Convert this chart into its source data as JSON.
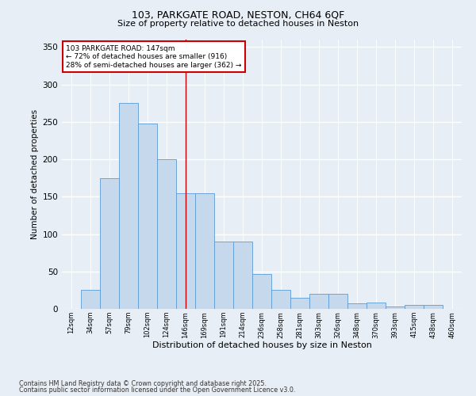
{
  "title1": "103, PARKGATE ROAD, NESTON, CH64 6QF",
  "title2": "Size of property relative to detached houses in Neston",
  "xlabel": "Distribution of detached houses by size in Neston",
  "ylabel": "Number of detached properties",
  "bin_labels": [
    "12sqm",
    "34sqm",
    "57sqm",
    "79sqm",
    "102sqm",
    "124sqm",
    "146sqm",
    "169sqm",
    "191sqm",
    "214sqm",
    "236sqm",
    "258sqm",
    "281sqm",
    "303sqm",
    "326sqm",
    "348sqm",
    "370sqm",
    "393sqm",
    "415sqm",
    "438sqm",
    "460sqm"
  ],
  "bar_heights": [
    0,
    25,
    175,
    275,
    248,
    200,
    155,
    155,
    90,
    90,
    47,
    25,
    15,
    20,
    20,
    7,
    8,
    3,
    5,
    5,
    0
  ],
  "bar_color": "#c5d8ec",
  "bar_edge_color": "#5b9bd5",
  "vline_index": 6,
  "annotation_box_text": "103 PARKGATE ROAD: 147sqm\n← 72% of detached houses are smaller (916)\n28% of semi-detached houses are larger (362) →",
  "annotation_box_color": "#ffffff",
  "annotation_box_edge_color": "#cc0000",
  "vline_color": "#cc0000",
  "ylim": [
    0,
    360
  ],
  "yticks": [
    0,
    50,
    100,
    150,
    200,
    250,
    300,
    350
  ],
  "bg_color": "#e8eef5",
  "grid_color": "#ffffff",
  "footer1": "Contains HM Land Registry data © Crown copyright and database right 2025.",
  "footer2": "Contains public sector information licensed under the Open Government Licence v3.0."
}
